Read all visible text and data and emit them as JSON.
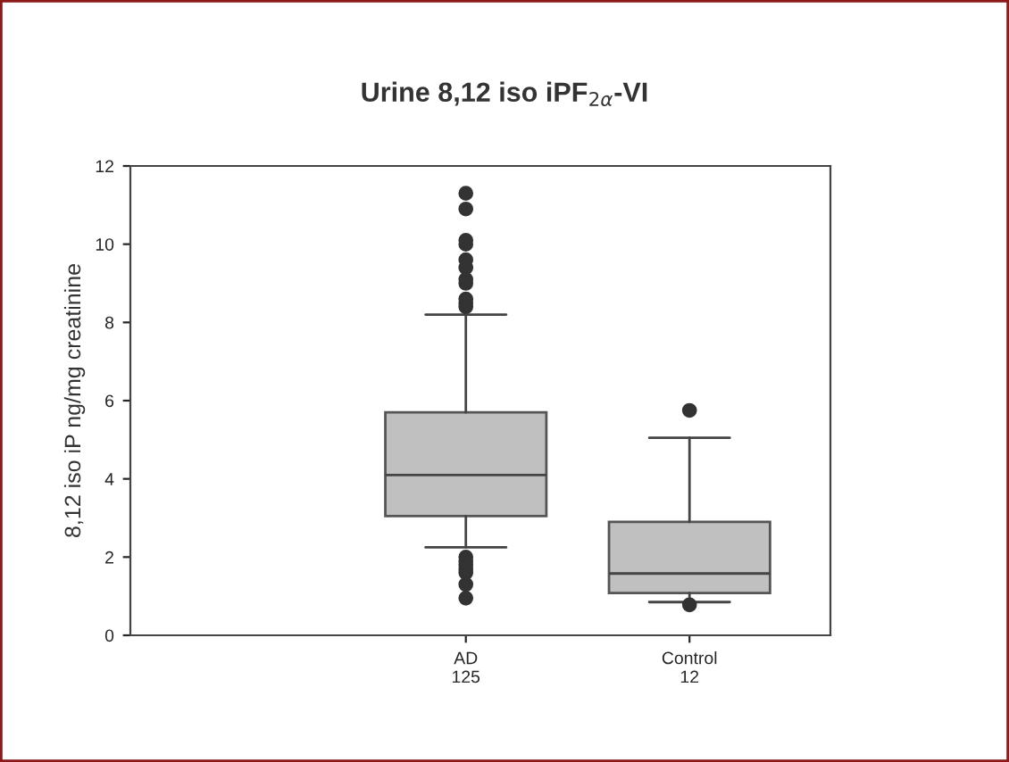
{
  "chart_data": {
    "type": "box",
    "title": "Urine 8,12 iso iPF$_{2α}$-VI",
    "ylabel": "8,12 iso iP ng/mg creatinine",
    "categories": [
      null,
      "AD\n125",
      "Control\n12"
    ],
    "color": "#c0c0c0",
    "boxes": [
      null,
      {
        "low": 2.25,
        "q1": 3.05,
        "median": 4.1,
        "q3": 5.7,
        "high": 8.2,
        "outliers": [
          8.4,
          8.5,
          8.6,
          9.0,
          9.1,
          9.4,
          9.6,
          10.0,
          10.1,
          10.9,
          11.3,
          2.0,
          1.9,
          1.8,
          1.7,
          1.6,
          1.3,
          0.95
        ]
      },
      {
        "low": 0.85,
        "q1": 1.08,
        "median": 1.58,
        "q3": 2.9,
        "high": 5.05,
        "outliers": [
          5.75,
          0.78
        ]
      }
    ],
    "ylim": [
      0,
      12
    ],
    "yticks": [
      0,
      2,
      4,
      6,
      8,
      10,
      12
    ],
    "grid": false,
    "legend": false
  }
}
